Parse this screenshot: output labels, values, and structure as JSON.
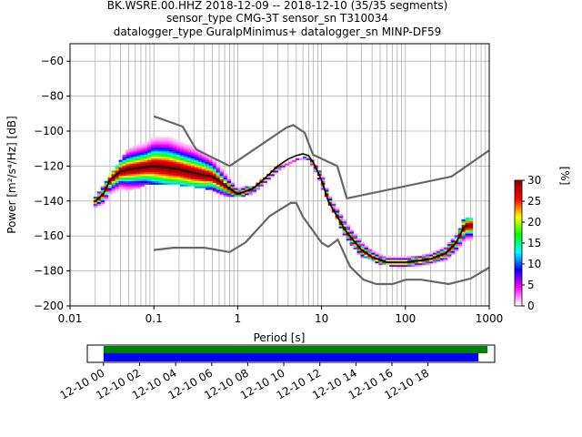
{
  "chart_data": {
    "type": "heatmap",
    "title_lines": [
      "BK.WSRE.00.HHZ   2018-12-09 -- 2018-12-10  (35/35 segments)",
      "sensor_type CMG-3T sensor_sn T310034",
      "datalogger_type GuralpMinimus+ datalogger_sn MINP-DF59"
    ],
    "xlabel": "Period [s]",
    "ylabel": "Power [m²/s⁴/Hz] [dB]",
    "x_scale": "log",
    "xlim": [
      0.01,
      1000
    ],
    "ylim": [
      -200,
      -50
    ],
    "x_ticks": [
      {
        "value": 0.01,
        "label": "0.01"
      },
      {
        "value": 0.1,
        "label": "0.1"
      },
      {
        "value": 1,
        "label": "1"
      },
      {
        "value": 10,
        "label": "10"
      },
      {
        "value": 100,
        "label": "100"
      },
      {
        "value": 1000,
        "label": "1000"
      }
    ],
    "y_ticks": [
      -60,
      -80,
      -100,
      -120,
      -140,
      -160,
      -180,
      -200
    ],
    "y_tick_labels": [
      "−60",
      "−80",
      "−100",
      "−120",
      "−140",
      "−160",
      "−180",
      "−200"
    ],
    "grid": true,
    "colorbar": {
      "label": "[%]",
      "range": [
        0,
        30
      ],
      "ticks": [
        "0",
        "5",
        "10",
        "15",
        "20",
        "25",
        "30"
      ],
      "colormap": [
        "#ffffff",
        "#ff00ff",
        "#0000ff",
        "#00ffff",
        "#00ff00",
        "#ffff00",
        "#ff0000",
        "#990000"
      ]
    },
    "noise_model_high": {
      "period": [
        0.1,
        0.22,
        0.32,
        0.8,
        3.8,
        4.6,
        6.3,
        7.9,
        15.4,
        20,
        354.8,
        1000
      ],
      "db": [
        -91.5,
        -97.4,
        -110.5,
        -120,
        -98,
        -96.5,
        -101,
        -113.5,
        -120,
        -138.5,
        -126,
        -111
      ]
    },
    "noise_model_low": {
      "period": [
        0.1,
        0.17,
        0.4,
        0.8,
        1.24,
        2.4,
        4.3,
        5,
        6,
        10,
        12,
        15.6,
        21.9,
        31.6,
        45,
        70,
        101,
        154,
        328,
        600,
        1000
      ],
      "db": [
        -168,
        -166.7,
        -166.7,
        -169.2,
        -163.7,
        -148.6,
        -141.1,
        -141.1,
        -149,
        -163.8,
        -166.2,
        -162.1,
        -177.5,
        -185,
        -187.5,
        -187.5,
        -185,
        -185,
        -187.5,
        -184.4,
        -178
      ]
    },
    "mode_curve": {
      "period": [
        0.02,
        0.025,
        0.03,
        0.04,
        0.05,
        0.07,
        0.1,
        0.15,
        0.2,
        0.3,
        0.5,
        0.7,
        1,
        1.5,
        2,
        3,
        4,
        5,
        6,
        7,
        8,
        10,
        12,
        15,
        20,
        30,
        40,
        60,
        80,
        100,
        150,
        200,
        300,
        400,
        500,
        550
      ],
      "db": [
        -140,
        -136,
        -128,
        -123,
        -122,
        -121,
        -120,
        -121,
        -122,
        -124,
        -126,
        -131,
        -136,
        -133,
        -128,
        -120,
        -116,
        -114,
        -113,
        -114,
        -118,
        -128,
        -140,
        -148,
        -158,
        -168,
        -172,
        -175,
        -175,
        -175,
        -174,
        -173,
        -170,
        -164,
        -155,
        -154
      ]
    },
    "psd_spread": {
      "period": [
        0.02,
        0.03,
        0.05,
        0.08,
        0.1,
        0.15,
        0.2,
        0.3,
        0.4,
        0.5,
        0.7,
        1,
        1.5,
        2,
        3,
        5,
        7,
        10,
        15,
        20,
        30,
        50,
        80,
        100,
        150,
        200,
        300,
        400,
        500,
        600
      ],
      "upper": [
        -138,
        -125,
        -110,
        -104,
        -98,
        -96,
        -100,
        -103,
        -108,
        -113,
        -123,
        -132,
        -132,
        -127,
        -120,
        -116,
        -114,
        -124,
        -141,
        -152,
        -163,
        -170,
        -172,
        -172,
        -171,
        -170,
        -166,
        -160,
        -150,
        -150
      ],
      "lower": [
        -145,
        -140,
        -134,
        -131,
        -130,
        -130,
        -131,
        -132,
        -133,
        -134,
        -137,
        -138,
        -136,
        -132,
        -124,
        -118,
        -116,
        -132,
        -150,
        -162,
        -172,
        -176,
        -178,
        -178,
        -177,
        -176,
        -174,
        -170,
        -166,
        -166
      ]
    },
    "timeline": {
      "tick_labels": [
        "12-10 00",
        "12-10 02",
        "12-10 04",
        "12-10 06",
        "12-10 08",
        "12-10 10",
        "12-10 12",
        "12-10 14",
        "12-10 16",
        "12-10 18"
      ],
      "hour_range": [
        -0.9,
        21.7
      ],
      "green_span": [
        0,
        21.3
      ],
      "blue_span": [
        0,
        20.8
      ],
      "colors": {
        "green": "#008000",
        "blue": "#0000ff"
      }
    }
  }
}
